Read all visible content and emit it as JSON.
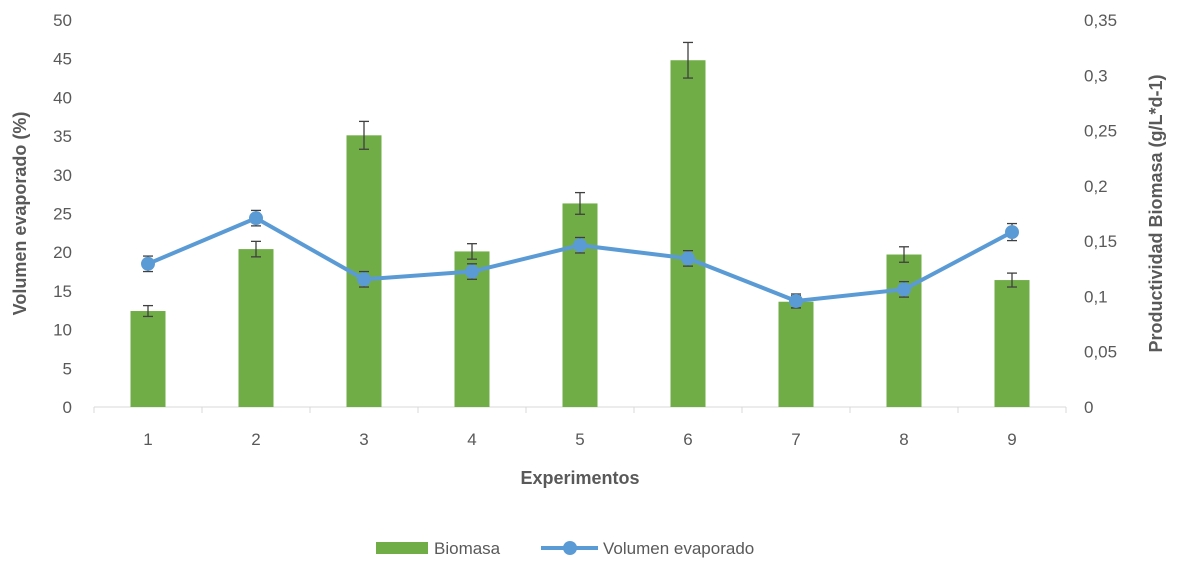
{
  "chart_data": {
    "type": "bar",
    "categories": [
      "1",
      "2",
      "3",
      "4",
      "5",
      "6",
      "7",
      "8",
      "9"
    ],
    "xlabel": "Experimentos",
    "ylabel_left": "Volumen evaporado (%)",
    "ylabel_right": "Productividad Biomasa (g/L*d-1)",
    "y_left": {
      "range": [
        0,
        50
      ],
      "ticks": [
        "0",
        "5",
        "10",
        "15",
        "20",
        "25",
        "30",
        "35",
        "40",
        "45",
        "50"
      ]
    },
    "y_right": {
      "range": [
        0,
        0.35
      ],
      "ticks": [
        "0",
        "0,05",
        "0,1",
        "0,15",
        "0,2",
        "0,25",
        "0,3",
        "0,35"
      ]
    },
    "grid": false,
    "legend_position": "bottom",
    "series": [
      {
        "name": "Biomasa",
        "type": "bar",
        "axis": "left",
        "color": "#70ad47",
        "values": [
          12.4,
          20.4,
          35.1,
          20.1,
          26.3,
          44.8,
          13.6,
          19.7,
          16.4
        ],
        "errors": [
          0.7,
          1.0,
          1.8,
          1.0,
          1.4,
          2.3,
          0.8,
          1.0,
          0.9
        ]
      },
      {
        "name": "Volumen evaporado",
        "type": "line",
        "axis": "left",
        "color": "#5b9bd5",
        "values": [
          18.5,
          24.4,
          16.5,
          17.5,
          20.9,
          19.2,
          13.7,
          15.2,
          22.6
        ],
        "errors": [
          1.0,
          1.0,
          1.0,
          1.0,
          1.0,
          1.0,
          0.9,
          1.0,
          1.1
        ]
      }
    ]
  }
}
